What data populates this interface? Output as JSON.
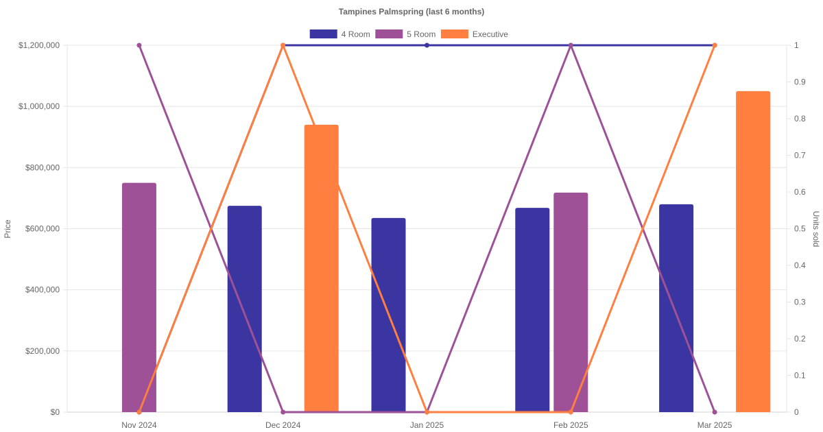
{
  "chart_data": {
    "type": "bar",
    "title": "Tampines Palmspring (last 6 months)",
    "categories": [
      "Nov 2024",
      "Dec 2024",
      "Jan 2025",
      "Feb 2025",
      "Mar 2025"
    ],
    "y_left": {
      "label": "Price",
      "range": [
        0,
        1200000
      ],
      "ticks": [
        "$0",
        "$200,000",
        "$400,000",
        "$600,000",
        "$800,000",
        "$1,000,000",
        "$1,200,000"
      ]
    },
    "y_right": {
      "label": "Units sold",
      "range": [
        0,
        1
      ],
      "ticks": [
        "0",
        "0.1",
        "0.2",
        "0.3",
        "0.4",
        "0.5",
        "0.6",
        "0.7",
        "0.8",
        "0.9",
        "1"
      ]
    },
    "grid": true,
    "legend_position": "top",
    "series": [
      {
        "name": "4 Room",
        "color": "#3a35a0",
        "price": [
          null,
          675000,
          635000,
          668000,
          680000
        ],
        "units_sold": [
          0,
          1,
          1,
          1,
          1
        ]
      },
      {
        "name": "5 Room",
        "color": "#9e5196",
        "price": [
          750000,
          null,
          null,
          718000,
          null
        ],
        "units_sold": [
          1,
          0,
          0,
          1,
          0
        ]
      },
      {
        "name": "Executive",
        "color": "#ff7f41",
        "price": [
          null,
          940000,
          null,
          null,
          1050000
        ],
        "units_sold": [
          0,
          1,
          0,
          0,
          1
        ]
      }
    ]
  }
}
